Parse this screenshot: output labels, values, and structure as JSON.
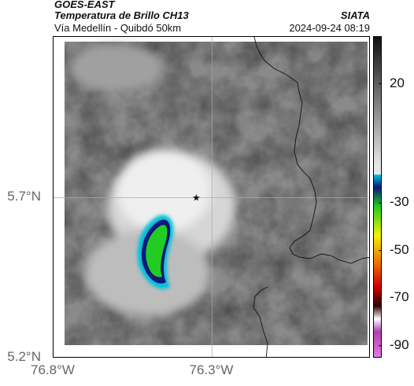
{
  "header": {
    "satellite": "GOES-EAST",
    "product": "Temperatura de Brillo CH13",
    "route": "Vía Medellín - Quibdó 50km",
    "organization": "SIATA",
    "timestamp": "2024-09-24 08:19"
  },
  "map": {
    "lat_range": [
      5.2,
      6.2
    ],
    "lon_range": [
      -76.8,
      -75.8
    ],
    "grid_lines": {
      "lat": 5.7,
      "lon": -76.3
    },
    "lat_ticks": [
      {
        "value": 5.7,
        "label": "5.7°N"
      },
      {
        "value": 5.2,
        "label": "5.2°N"
      }
    ],
    "lon_ticks": [
      {
        "value": -76.8,
        "label": "76.8°W"
      },
      {
        "value": -76.3,
        "label": "76.3°W"
      }
    ],
    "marker": {
      "lon": -76.35,
      "lat": 5.7,
      "icon": "star-icon"
    }
  },
  "colorbar": {
    "range": [
      -95,
      40
    ],
    "ticks": [
      {
        "value": 20,
        "label": "20"
      },
      {
        "value": -30,
        "label": "-30"
      },
      {
        "value": -50,
        "label": "-50"
      },
      {
        "value": -70,
        "label": "-70"
      },
      {
        "value": -90,
        "label": "-90"
      }
    ],
    "colors": {
      "warm_top": "#111111",
      "warm_bottom": "#e6e6e6",
      "cyan": "#00c8e0",
      "blue": "#0a1a7a",
      "green": "#22cc22",
      "yellow": "#f2f200",
      "orange": "#f07800",
      "red": "#d00000",
      "dark": "#300000",
      "magenta": "#b040b0"
    }
  }
}
